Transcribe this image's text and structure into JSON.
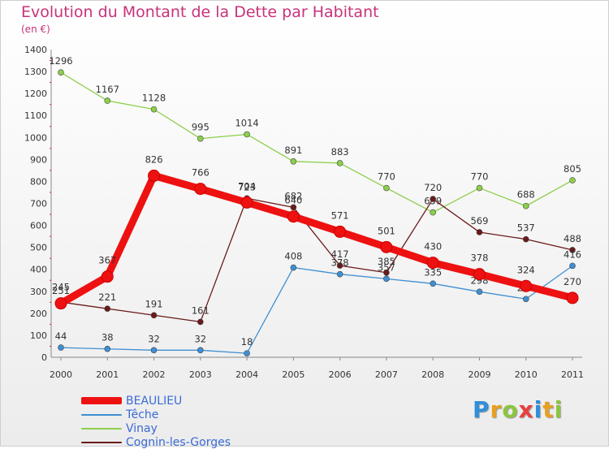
{
  "header": {
    "title": "Evolution du Montant de la Dette par Habitant",
    "unit": "(en €)"
  },
  "brand": {
    "letters": [
      "P",
      "r",
      "o",
      "x",
      "i",
      "t",
      "i"
    ],
    "colors": [
      "#2f8fd8",
      "#e8a020",
      "#8cc63f",
      "#e84040",
      "#2f8fd8",
      "#e8a020",
      "#8cc63f"
    ]
  },
  "chart_data": {
    "type": "line",
    "x": [
      "2000",
      "2001",
      "2002",
      "2003",
      "2004",
      "2005",
      "2006",
      "2007",
      "2008",
      "2009",
      "2010",
      "2011"
    ],
    "ylim": [
      0,
      1400
    ],
    "yticks": [
      "0",
      "100",
      "200",
      "300",
      "400",
      "500",
      "600",
      "700",
      "800",
      "900",
      "1000",
      "1100",
      "1200",
      "1300",
      "1400"
    ],
    "grid": false,
    "legend_position": "bottom-left",
    "series": [
      {
        "name": "BEAULIEU",
        "color": "#ee1111",
        "values": [
          245,
          367,
          826,
          766,
          704,
          640,
          571,
          501,
          430,
          378,
          324,
          270
        ],
        "labels": [
          "245",
          "367",
          "826",
          "766",
          "704",
          "640",
          "571",
          "501",
          "430",
          "378",
          "324",
          "270"
        ]
      },
      {
        "name": "Têche",
        "color": "#3f8fd2",
        "values": [
          44,
          38,
          32,
          32,
          18,
          408,
          378,
          357,
          335,
          298,
          265,
          416
        ],
        "labels": [
          "44",
          "38",
          "32",
          "32",
          "18",
          "408",
          "378",
          "357",
          "335",
          "298",
          "265",
          "416"
        ]
      },
      {
        "name": "Vinay",
        "color": "#8ccf4a",
        "values": [
          1296,
          1167,
          1128,
          995,
          1014,
          891,
          883,
          770,
          659,
          770,
          688,
          805
        ],
        "labels": [
          "1296",
          "1167",
          "1128",
          "995",
          "1014",
          "891",
          "883",
          "770",
          "659",
          "770",
          "688",
          "805"
        ]
      },
      {
        "name": "Cognin-les-Gorges",
        "color": "#6b1a1a",
        "values": [
          251,
          221,
          191,
          161,
          723,
          682,
          417,
          385,
          720,
          569,
          537,
          488
        ],
        "labels": [
          "251",
          "221",
          "191",
          "161",
          "723",
          "682",
          "417",
          "385",
          "720",
          "569",
          "537",
          "488"
        ]
      }
    ]
  }
}
